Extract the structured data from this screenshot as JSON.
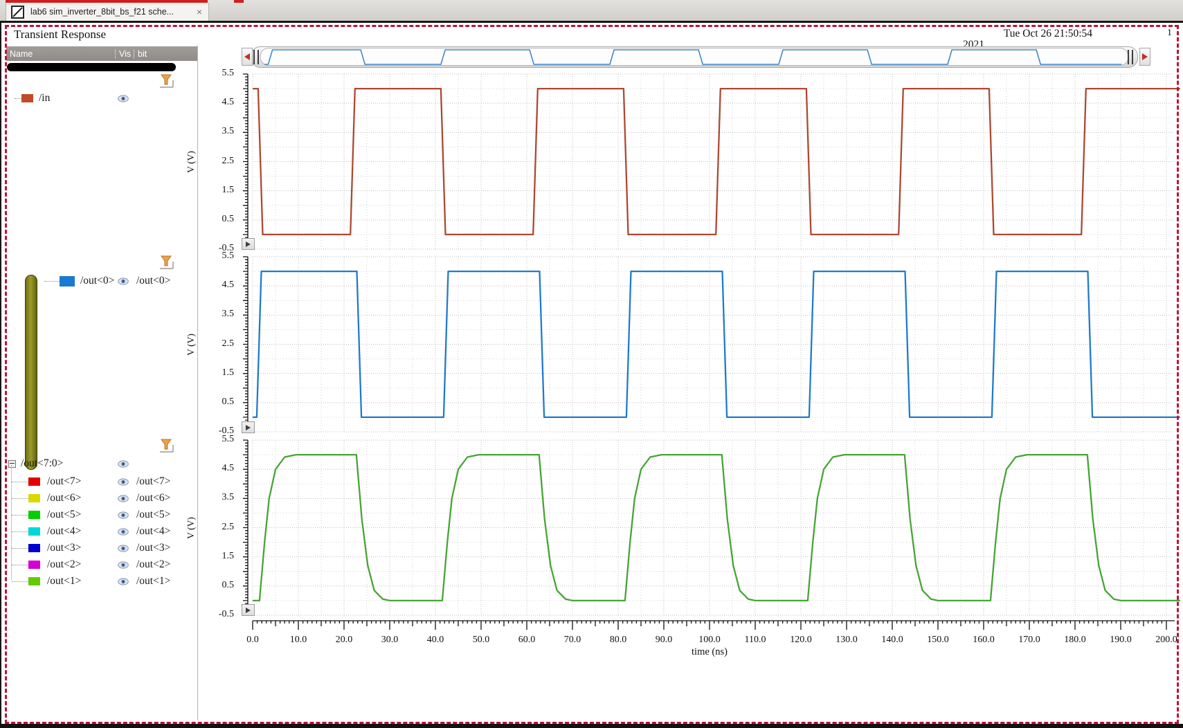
{
  "tab": {
    "label": "lab6 sim_inverter_8bit_bs_f21 sche...",
    "close_glyph": "×"
  },
  "header": {
    "title": "Transient Response",
    "timestamp": "Tue Oct 26 21:50:54",
    "timestamp_year": "2021",
    "page_indicator": "1"
  },
  "tree": {
    "columns": {
      "name": "Name",
      "vis": "Vis",
      "bit": "bit"
    },
    "rows": {
      "in": {
        "label": "/in",
        "color": "#c14a28",
        "bit": ""
      },
      "out0": {
        "label": "/out<0>",
        "color": "#1a7ad2",
        "bit": "/out<0>"
      },
      "bus": {
        "label": "/out<7:0>",
        "bit": ""
      }
    },
    "children": [
      {
        "label": "/out<7>",
        "color": "#e10000",
        "bit": "/out<7>"
      },
      {
        "label": "/out<6>",
        "color": "#d9d900",
        "bit": "/out<6>"
      },
      {
        "label": "/out<5>",
        "color": "#00cf00",
        "bit": "/out<5>"
      },
      {
        "label": "/out<4>",
        "color": "#00d8d8",
        "bit": "/out<4>"
      },
      {
        "label": "/out<3>",
        "color": "#0000d0",
        "bit": "/out<3>"
      },
      {
        "label": "/out<2>",
        "color": "#d400d4",
        "bit": "/out<2>"
      },
      {
        "label": "/out<1>",
        "color": "#63cc00",
        "bit": "/out<1>"
      }
    ]
  },
  "chart_data": {
    "type": "line",
    "title": "Transient Response",
    "xlabel": "time (ns)",
    "ylabel": "V (V)",
    "xlim": [
      0,
      200
    ],
    "ylim": [
      -0.5,
      5.5
    ],
    "grid": true,
    "xticks": [
      "0.0",
      "10.0",
      "20.0",
      "30.0",
      "40.0",
      "50.0",
      "60.0",
      "70.0",
      "80.0",
      "90.0",
      "100.0",
      "110.0",
      "120.0",
      "130.0",
      "140.0",
      "150.0",
      "160.0",
      "170.0",
      "180.0",
      "190.0",
      "200.0"
    ],
    "yticks": [
      "5.5",
      "4.5",
      "3.5",
      "2.5",
      "1.5",
      "0.5",
      "-0.5"
    ],
    "panes": [
      {
        "signal": "/in",
        "color": "#ad4832",
        "points": [
          [
            0,
            5
          ],
          [
            1.2,
            5
          ],
          [
            2.2,
            0
          ],
          [
            21.4,
            0
          ],
          [
            22.4,
            5
          ],
          [
            41.2,
            5
          ],
          [
            42.2,
            0
          ],
          [
            61.4,
            0
          ],
          [
            62.4,
            5
          ],
          [
            81.2,
            5
          ],
          [
            82.2,
            0
          ],
          [
            101.4,
            0
          ],
          [
            102.4,
            5
          ],
          [
            121.2,
            5
          ],
          [
            122.2,
            0
          ],
          [
            141.4,
            0
          ],
          [
            142.4,
            5
          ],
          [
            161.2,
            5
          ],
          [
            162.2,
            0
          ],
          [
            181.4,
            0
          ],
          [
            182.4,
            5
          ],
          [
            203,
            5
          ]
        ]
      },
      {
        "signal": "/out<0>",
        "color": "#2079cf",
        "points": [
          [
            0,
            0
          ],
          [
            0.9,
            0
          ],
          [
            1.9,
            5
          ],
          [
            22.8,
            5
          ],
          [
            23.8,
            0
          ],
          [
            41.8,
            0
          ],
          [
            42.8,
            5
          ],
          [
            62.8,
            5
          ],
          [
            63.8,
            0
          ],
          [
            81.8,
            0
          ],
          [
            82.8,
            5
          ],
          [
            102.8,
            5
          ],
          [
            103.8,
            0
          ],
          [
            121.8,
            0
          ],
          [
            122.8,
            5
          ],
          [
            142.8,
            5
          ],
          [
            143.8,
            0
          ],
          [
            161.8,
            0
          ],
          [
            162.8,
            5
          ],
          [
            182.8,
            5
          ],
          [
            183.8,
            0
          ],
          [
            203,
            0
          ]
        ]
      },
      {
        "signal": "/out<7:0>",
        "color": "#46a435",
        "points": [
          [
            0,
            0
          ],
          [
            1.5,
            0
          ],
          [
            2.6,
            2
          ],
          [
            3.6,
            3.5
          ],
          [
            5,
            4.5
          ],
          [
            7,
            4.92
          ],
          [
            9.5,
            5
          ],
          [
            22.7,
            5
          ],
          [
            23.9,
            2.8
          ],
          [
            25.2,
            1.2
          ],
          [
            26.6,
            0.35
          ],
          [
            28.5,
            0.05
          ],
          [
            30,
            0
          ],
          [
            41.5,
            0
          ],
          [
            42.6,
            2
          ],
          [
            43.6,
            3.5
          ],
          [
            45,
            4.5
          ],
          [
            47,
            4.92
          ],
          [
            49.5,
            5
          ],
          [
            62.7,
            5
          ],
          [
            63.9,
            2.8
          ],
          [
            65.2,
            1.2
          ],
          [
            66.6,
            0.35
          ],
          [
            68.5,
            0.05
          ],
          [
            70,
            0
          ],
          [
            81.5,
            0
          ],
          [
            82.6,
            2
          ],
          [
            83.6,
            3.5
          ],
          [
            85,
            4.5
          ],
          [
            87,
            4.92
          ],
          [
            89.5,
            5
          ],
          [
            102.7,
            5
          ],
          [
            103.9,
            2.8
          ],
          [
            105.2,
            1.2
          ],
          [
            106.6,
            0.35
          ],
          [
            108.5,
            0.05
          ],
          [
            110,
            0
          ],
          [
            121.5,
            0
          ],
          [
            122.6,
            2
          ],
          [
            123.6,
            3.5
          ],
          [
            125,
            4.5
          ],
          [
            127,
            4.92
          ],
          [
            129.5,
            5
          ],
          [
            142.7,
            5
          ],
          [
            143.9,
            2.8
          ],
          [
            145.2,
            1.2
          ],
          [
            146.6,
            0.35
          ],
          [
            148.5,
            0.05
          ],
          [
            150,
            0
          ],
          [
            161.5,
            0
          ],
          [
            162.6,
            2
          ],
          [
            163.6,
            3.5
          ],
          [
            165,
            4.5
          ],
          [
            167,
            4.92
          ],
          [
            169.5,
            5
          ],
          [
            182.7,
            5
          ],
          [
            183.9,
            2.8
          ],
          [
            185.2,
            1.2
          ],
          [
            186.6,
            0.35
          ],
          [
            188.5,
            0.05
          ],
          [
            190,
            0
          ],
          [
            203,
            0
          ]
        ]
      }
    ],
    "overview": {
      "signal": "/out<0>",
      "color": "#3f87c9"
    }
  }
}
